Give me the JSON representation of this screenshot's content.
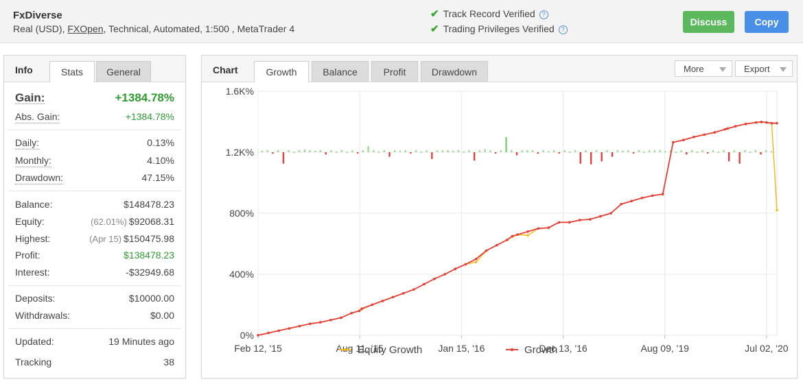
{
  "header": {
    "account_name": "FxDiverse",
    "desc_prefix": "Real (USD),",
    "broker": "FXOpen",
    "desc_suffix": ", Technical, Automated, 1:500 , MetaTrader 4",
    "verified_track": "Track Record Verified",
    "verified_privileges": "Trading Privileges Verified",
    "help_glyph": "?",
    "discuss_label": "Discuss",
    "copy_label": "Copy"
  },
  "info_panel": {
    "title": "Info",
    "tabs": [
      {
        "label": "Stats",
        "active": true
      },
      {
        "label": "General",
        "active": false
      }
    ],
    "gain": {
      "label": "Gain:",
      "value": "+1384.78%"
    },
    "abs_gain": {
      "label": "Abs. Gain:",
      "value": "+1384.78%"
    },
    "daily": {
      "label": "Daily:",
      "value": "0.13%"
    },
    "monthly": {
      "label": "Monthly:",
      "value": "4.10%"
    },
    "drawdown": {
      "label": "Drawdown:",
      "value": "47.15%"
    },
    "balance": {
      "label": "Balance:",
      "value": "$148478.23"
    },
    "equity": {
      "label": "Equity:",
      "aux": "(62.01%)",
      "value": "$92068.31"
    },
    "highest": {
      "label": "Highest:",
      "aux": "(Apr 15)",
      "value": "$150475.98"
    },
    "profit": {
      "label": "Profit:",
      "value": "$138478.23"
    },
    "interest": {
      "label": "Interest:",
      "value": "-$32949.68"
    },
    "deposits": {
      "label": "Deposits:",
      "value": "$10000.00"
    },
    "withdrawals": {
      "label": "Withdrawals:",
      "value": "$0.00"
    },
    "updated": {
      "label": "Updated:",
      "value": "19 Minutes ago"
    },
    "tracking": {
      "label": "Tracking",
      "value": "38"
    }
  },
  "chart_panel": {
    "title": "Chart",
    "tabs": [
      {
        "label": "Growth",
        "active": true
      },
      {
        "label": "Balance",
        "active": false
      },
      {
        "label": "Profit",
        "active": false
      },
      {
        "label": "Drawdown",
        "active": false
      }
    ],
    "more_label": "More",
    "export_label": "Export"
  },
  "colors": {
    "growth": "#e2403b",
    "equity": "#f5b820",
    "bar_positive": "#9fd89a",
    "bar_positive_tall": "#7ccf77",
    "bar_negative": "#e2403b",
    "accent_green": "#2f9c2f"
  },
  "chart_data": {
    "type": "line",
    "title": "",
    "xlabel": "",
    "ylabel": "",
    "x_tick_labels": [
      "Feb 12, '15",
      "Aug 11, '15",
      "Jan 15, '16",
      "Dec 13, '16",
      "Aug 09, '19",
      "Jul 02, '20"
    ],
    "y_tick_labels": [
      "0%",
      "400%",
      "800%",
      "1.2K%",
      "1.6K%"
    ],
    "ylim": [
      0,
      1600
    ],
    "grid": true,
    "legend_position": "bottom",
    "x": [
      0,
      0.02,
      0.04,
      0.06,
      0.08,
      0.1,
      0.12,
      0.14,
      0.16,
      0.18,
      0.195,
      0.2,
      0.22,
      0.24,
      0.26,
      0.28,
      0.3,
      0.32,
      0.34,
      0.36,
      0.38,
      0.4,
      0.42,
      0.44,
      0.46,
      0.48,
      0.49,
      0.5,
      0.52,
      0.54,
      0.56,
      0.58,
      0.6,
      0.62,
      0.64,
      0.66,
      0.68,
      0.7,
      0.72,
      0.74,
      0.76,
      0.78,
      0.8,
      0.82,
      0.84,
      0.86,
      0.88,
      0.9,
      0.905,
      0.92,
      0.94,
      0.96,
      0.97,
      0.98,
      0.99,
      1.0
    ],
    "series": [
      {
        "name": "Equity Growth",
        "values": [
          0,
          15,
          30,
          45,
          60,
          75,
          85,
          100,
          115,
          145,
          160,
          170,
          200,
          225,
          250,
          275,
          300,
          335,
          370,
          400,
          435,
          465,
          480,
          555,
          590,
          625,
          645,
          660,
          655,
          700,
          705,
          740,
          740,
          755,
          760,
          780,
          800,
          860,
          880,
          900,
          915,
          925,
          1265,
          1280,
          1300,
          1315,
          1330,
          1350,
          1355,
          1370,
          1385,
          1395,
          1398,
          1395,
          1390,
          820
        ]
      },
      {
        "name": "Growth",
        "values": [
          0,
          15,
          30,
          45,
          60,
          75,
          85,
          100,
          115,
          145,
          160,
          175,
          200,
          225,
          250,
          275,
          300,
          335,
          370,
          400,
          435,
          465,
          500,
          555,
          590,
          625,
          650,
          660,
          680,
          700,
          705,
          740,
          740,
          755,
          760,
          780,
          800,
          860,
          880,
          900,
          915,
          925,
          1265,
          1280,
          1300,
          1315,
          1330,
          1350,
          1355,
          1370,
          1385,
          1395,
          1398,
          1395,
          1390,
          1390
        ]
      }
    ],
    "bars_note": "",
    "bars": [
      20,
      -20,
      -150,
      10,
      35,
      18,
      -30,
      10,
      8,
      -12,
      80,
      10,
      -60,
      18,
      -18,
      10,
      -90,
      25,
      20,
      12,
      -110,
      40,
      -15,
      200,
      -40,
      28,
      -20,
      15,
      -15,
      10,
      -150,
      -160,
      -120,
      -60,
      20,
      -15,
      10,
      25,
      15,
      8,
      -30,
      10,
      -15,
      10,
      -120,
      -150,
      10,
      -30,
      15
    ]
  }
}
